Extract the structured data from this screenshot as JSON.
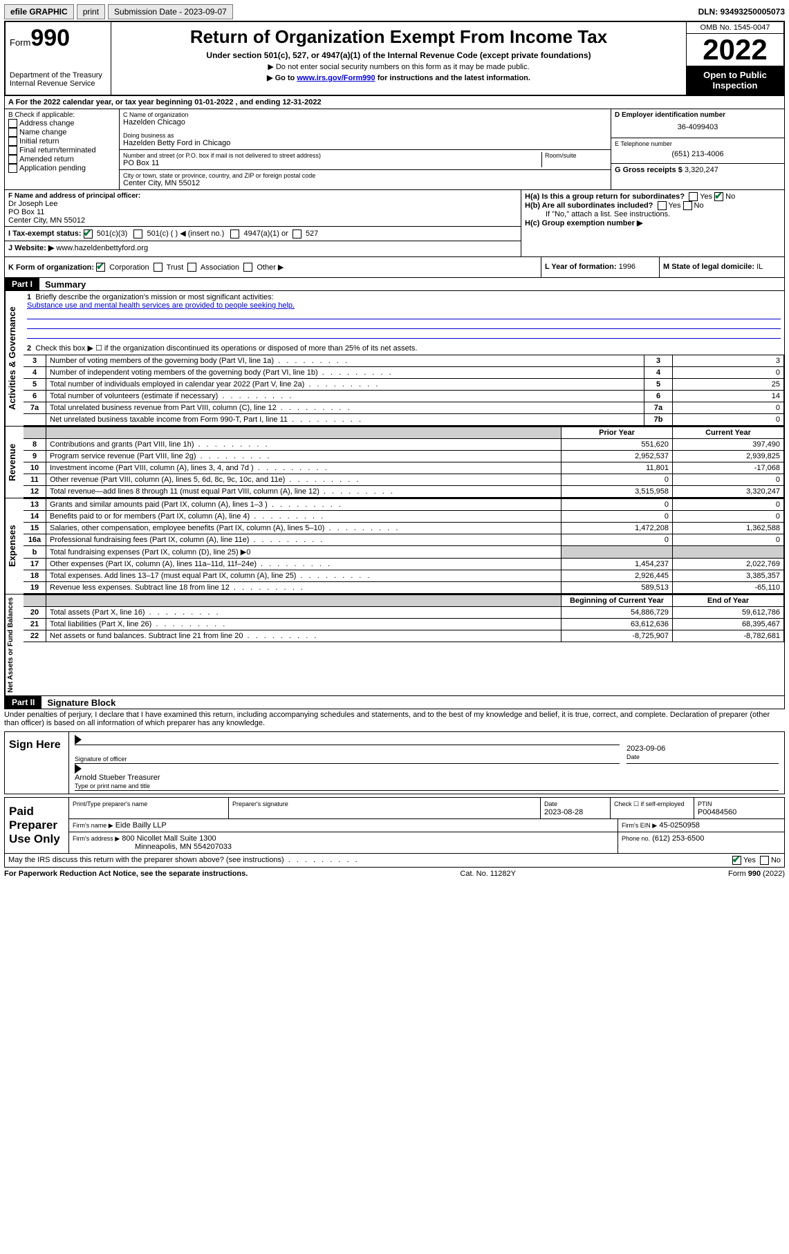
{
  "topbar": {
    "efile": "efile GRAPHIC",
    "print": "print",
    "subdate_label": "Submission Date - 2023-09-07",
    "dln": "DLN: 93493250005073"
  },
  "header": {
    "form_label": "Form",
    "form_no": "990",
    "dept": "Department of the Treasury",
    "irs": "Internal Revenue Service",
    "title": "Return of Organization Exempt From Income Tax",
    "sub1": "Under section 501(c), 527, or 4947(a)(1) of the Internal Revenue Code (except private foundations)",
    "sub2": "▶ Do not enter social security numbers on this form as it may be made public.",
    "sub3_pre": "▶ Go to ",
    "sub3_link": "www.irs.gov/Form990",
    "sub3_post": " for instructions and the latest information.",
    "omb": "OMB No. 1545-0047",
    "year": "2022",
    "openpub": "Open to Public Inspection"
  },
  "sectionA": {
    "line": "A For the 2022 calendar year, or tax year beginning 01-01-2022    , and ending 12-31-2022",
    "B_label": "B Check if applicable:",
    "checks": [
      "Address change",
      "Name change",
      "Initial return",
      "Final return/terminated",
      "Amended return",
      "Application pending"
    ],
    "C_label": "C Name of organization",
    "C_name": "Hazelden Chicago",
    "dba_label": "Doing business as",
    "dba": "Hazelden Betty Ford in Chicago",
    "addr_label": "Number and street (or P.O. box if mail is not delivered to street address)",
    "room": "Room/suite",
    "addr": "PO Box 11",
    "city_label": "City or town, state or province, country, and ZIP or foreign postal code",
    "city": "Center City, MN  55012",
    "D_label": "D Employer identification number",
    "D_val": "36-4099403",
    "E_label": "E Telephone number",
    "E_val": "(651) 213-4006",
    "G_label": "G Gross receipts $",
    "G_val": "3,320,247",
    "F_label": "F  Name and address of principal officer:",
    "F_name": "Dr Joseph Lee",
    "F_addr1": "PO Box 11",
    "F_addr2": "Center City, MN  55012",
    "Ha_label": "H(a)  Is this a group return for subordinates?",
    "Hb_label": "H(b)  Are all subordinates included?",
    "H_note": "If \"No,\" attach a list. See instructions.",
    "Hc_label": "H(c)  Group exemption number ▶",
    "I_label": "I  Tax-exempt status:",
    "I_501c3": "501(c)(3)",
    "I_501c": "501(c) (    ) ◀ (insert no.)",
    "I_4947": "4947(a)(1) or",
    "I_527": "527",
    "J_label": "J  Website: ▶",
    "J_val": "www.hazeldenbettyford.org",
    "K_label": "K Form of organization:",
    "K_opts": [
      "Corporation",
      "Trust",
      "Association",
      "Other ▶"
    ],
    "L_label": "L Year of formation:",
    "L_val": "1996",
    "M_label": "M State of legal domicile:",
    "M_val": "IL"
  },
  "part1": {
    "bar": "Part I",
    "title": "Summary",
    "q1_label": "Briefly describe the organization's mission or most significant activities:",
    "q1_text": "Substance use and mental health services are provided to people seeking help.",
    "q2": "Check this box ▶ ☐  if the organization discontinued its operations or disposed of more than 25% of its net assets.",
    "sections": {
      "gov": "Activities & Governance",
      "rev": "Revenue",
      "exp": "Expenses",
      "net": "Net Assets or Fund Balances"
    },
    "col_prior": "Prior Year",
    "col_curr": "Current Year",
    "col_beg": "Beginning of Current Year",
    "col_end": "End of Year",
    "rows_gov": [
      {
        "n": "3",
        "d": "Number of voting members of the governing body (Part VI, line 1a)",
        "box": "3",
        "v": "3"
      },
      {
        "n": "4",
        "d": "Number of independent voting members of the governing body (Part VI, line 1b)",
        "box": "4",
        "v": "0"
      },
      {
        "n": "5",
        "d": "Total number of individuals employed in calendar year 2022 (Part V, line 2a)",
        "box": "5",
        "v": "25"
      },
      {
        "n": "6",
        "d": "Total number of volunteers (estimate if necessary)",
        "box": "6",
        "v": "14"
      },
      {
        "n": "7a",
        "d": "Total unrelated business revenue from Part VIII, column (C), line 12",
        "box": "7a",
        "v": "0"
      },
      {
        "n": "",
        "d": "Net unrelated business taxable income from Form 990-T, Part I, line 11",
        "box": "7b",
        "v": "0"
      }
    ],
    "rows_rev": [
      {
        "n": "8",
        "d": "Contributions and grants (Part VIII, line 1h)",
        "p": "551,620",
        "c": "397,490"
      },
      {
        "n": "9",
        "d": "Program service revenue (Part VIII, line 2g)",
        "p": "2,952,537",
        "c": "2,939,825"
      },
      {
        "n": "10",
        "d": "Investment income (Part VIII, column (A), lines 3, 4, and 7d )",
        "p": "11,801",
        "c": "-17,068"
      },
      {
        "n": "11",
        "d": "Other revenue (Part VIII, column (A), lines 5, 6d, 8c, 9c, 10c, and 11e)",
        "p": "0",
        "c": "0"
      },
      {
        "n": "12",
        "d": "Total revenue—add lines 8 through 11 (must equal Part VIII, column (A), line 12)",
        "p": "3,515,958",
        "c": "3,320,247"
      }
    ],
    "rows_exp": [
      {
        "n": "13",
        "d": "Grants and similar amounts paid (Part IX, column (A), lines 1–3 )",
        "p": "0",
        "c": "0"
      },
      {
        "n": "14",
        "d": "Benefits paid to or for members (Part IX, column (A), line 4)",
        "p": "0",
        "c": "0"
      },
      {
        "n": "15",
        "d": "Salaries, other compensation, employee benefits (Part IX, column (A), lines 5–10)",
        "p": "1,472,208",
        "c": "1,362,588"
      },
      {
        "n": "16a",
        "d": "Professional fundraising fees (Part IX, column (A), line 11e)",
        "p": "0",
        "c": "0"
      },
      {
        "n": "b",
        "d": "Total fundraising expenses (Part IX, column (D), line 25) ▶0",
        "p": "",
        "c": "",
        "shade": true
      },
      {
        "n": "17",
        "d": "Other expenses (Part IX, column (A), lines 11a–11d, 11f–24e)",
        "p": "1,454,237",
        "c": "2,022,769"
      },
      {
        "n": "18",
        "d": "Total expenses. Add lines 13–17 (must equal Part IX, column (A), line 25)",
        "p": "2,926,445",
        "c": "3,385,357"
      },
      {
        "n": "19",
        "d": "Revenue less expenses. Subtract line 18 from line 12",
        "p": "589,513",
        "c": "-65,110"
      }
    ],
    "rows_net": [
      {
        "n": "20",
        "d": "Total assets (Part X, line 16)",
        "p": "54,886,729",
        "c": "59,612,786"
      },
      {
        "n": "21",
        "d": "Total liabilities (Part X, line 26)",
        "p": "63,612,636",
        "c": "68,395,467"
      },
      {
        "n": "22",
        "d": "Net assets or fund balances. Subtract line 21 from line 20",
        "p": "-8,725,907",
        "c": "-8,782,681"
      }
    ]
  },
  "part2": {
    "bar": "Part II",
    "title": "Signature Block",
    "decl": "Under penalties of perjury, I declare that I have examined this return, including accompanying schedules and statements, and to the best of my knowledge and belief, it is true, correct, and complete. Declaration of preparer (other than officer) is based on all information of which preparer has any knowledge.",
    "signhere": "Sign Here",
    "sig_officer": "Signature of officer",
    "sig_date": "2023-09-06",
    "sig_datelabel": "Date",
    "sig_name": "Arnold Stueber Treasurer",
    "sig_typelabel": "Type or print name and title",
    "paid": "Paid Preparer Use Only",
    "prep_name_label": "Print/Type preparer's name",
    "prep_sig_label": "Preparer's signature",
    "prep_date_label": "Date",
    "prep_date": "2023-08-28",
    "prep_check": "Check ☐ if self-employed",
    "ptin_label": "PTIN",
    "ptin": "P00484560",
    "firm_name_label": "Firm's name    ▶",
    "firm_name": "Eide Bailly LLP",
    "firm_ein_label": "Firm's EIN ▶",
    "firm_ein": "45-0250958",
    "firm_addr_label": "Firm's address ▶",
    "firm_addr1": "800 Nicollet Mall Suite 1300",
    "firm_addr2": "Minneapolis, MN  554207033",
    "phone_label": "Phone no.",
    "phone": "(612) 253-6500",
    "discuss": "May the IRS discuss this return with the preparer shown above? (see instructions)"
  },
  "footer": {
    "left": "For Paperwork Reduction Act Notice, see the separate instructions.",
    "mid": "Cat. No. 11282Y",
    "right": "Form 990 (2022)"
  }
}
